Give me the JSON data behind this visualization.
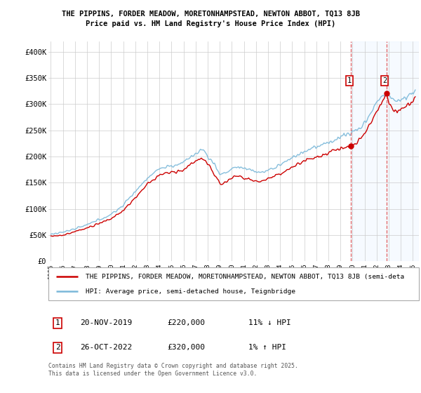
{
  "title_line1": "THE PIPPINS, FORDER MEADOW, MORETONHAMPSTEAD, NEWTON ABBOT, TQ13 8JB",
  "title_line2": "Price paid vs. HM Land Registry's House Price Index (HPI)",
  "ylabel_ticks": [
    "£0",
    "£50K",
    "£100K",
    "£150K",
    "£200K",
    "£250K",
    "£300K",
    "£350K",
    "£400K"
  ],
  "ytick_vals": [
    0,
    50000,
    100000,
    150000,
    200000,
    250000,
    300000,
    350000,
    400000
  ],
  "ylim": [
    0,
    420000
  ],
  "xlim_start": 1994.8,
  "xlim_end": 2025.5,
  "xlabel_years": [
    1995,
    1996,
    1997,
    1998,
    1999,
    2000,
    2001,
    2002,
    2003,
    2004,
    2005,
    2006,
    2007,
    2008,
    2009,
    2010,
    2011,
    2012,
    2013,
    2014,
    2015,
    2016,
    2017,
    2018,
    2019,
    2020,
    2021,
    2022,
    2023,
    2024,
    2025
  ],
  "hpi_color": "#7ab8d9",
  "price_color": "#cc0000",
  "sale1_x": 2019.88,
  "sale1_y": 220000,
  "sale2_x": 2022.82,
  "sale2_y": 320000,
  "shade_start": 2019.88,
  "shade_end": 2025.5,
  "shade_color": "#ddeeff",
  "dashed_line_color": "#dd4444",
  "footnote": "Contains HM Land Registry data © Crown copyright and database right 2025.\nThis data is licensed under the Open Government Licence v3.0.",
  "legend_line1": "THE PIPPINS, FORDER MEADOW, MORETONHAMPSTEAD, NEWTON ABBOT, TQ13 8JB (semi-deta",
  "legend_line2": "HPI: Average price, semi-detached house, Teignbridge",
  "table_row1_num": "1",
  "table_row1_date": "20-NOV-2019",
  "table_row1_price": "£220,000",
  "table_row1_hpi": "11% ↓ HPI",
  "table_row2_num": "2",
  "table_row2_date": "26-OCT-2022",
  "table_row2_price": "£320,000",
  "table_row2_hpi": "1% ↑ HPI",
  "background_color": "#ffffff",
  "plot_bg_color": "#ffffff",
  "grid_color": "#cccccc"
}
